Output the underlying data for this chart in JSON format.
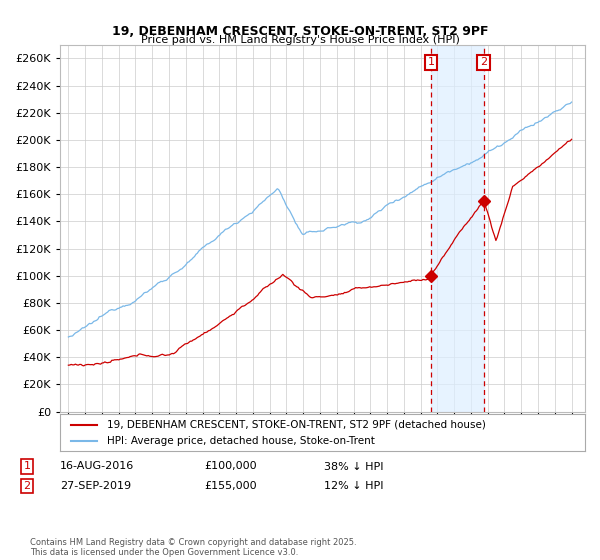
{
  "title": "19, DEBENHAM CRESCENT, STOKE-ON-TRENT, ST2 9PF",
  "subtitle": "Price paid vs. HM Land Registry's House Price Index (HPI)",
  "ylim": [
    0,
    270000
  ],
  "yticks": [
    0,
    20000,
    40000,
    60000,
    80000,
    100000,
    120000,
    140000,
    160000,
    180000,
    200000,
    220000,
    240000,
    260000
  ],
  "hpi_color": "#7ab8e8",
  "price_color": "#cc0000",
  "annotation_color": "#cc0000",
  "dashed_color": "#cc0000",
  "shade_color": "#ddeeff",
  "legend_label_price": "19, DEBENHAM CRESCENT, STOKE-ON-TRENT, ST2 9PF (detached house)",
  "legend_label_hpi": "HPI: Average price, detached house, Stoke-on-Trent",
  "sale1_date": "16-AUG-2016",
  "sale1_price": "£100,000",
  "sale1_hpi": "38% ↓ HPI",
  "sale2_date": "27-SEP-2019",
  "sale2_price": "£155,000",
  "sale2_hpi": "12% ↓ HPI",
  "footnote": "Contains HM Land Registry data © Crown copyright and database right 2025.\nThis data is licensed under the Open Government Licence v3.0.",
  "grid_color": "#cccccc",
  "background_color": "#ffffff",
  "sale1_t": 2016.625,
  "sale1_p": 100000,
  "sale2_t": 2019.75,
  "sale2_p": 155000
}
